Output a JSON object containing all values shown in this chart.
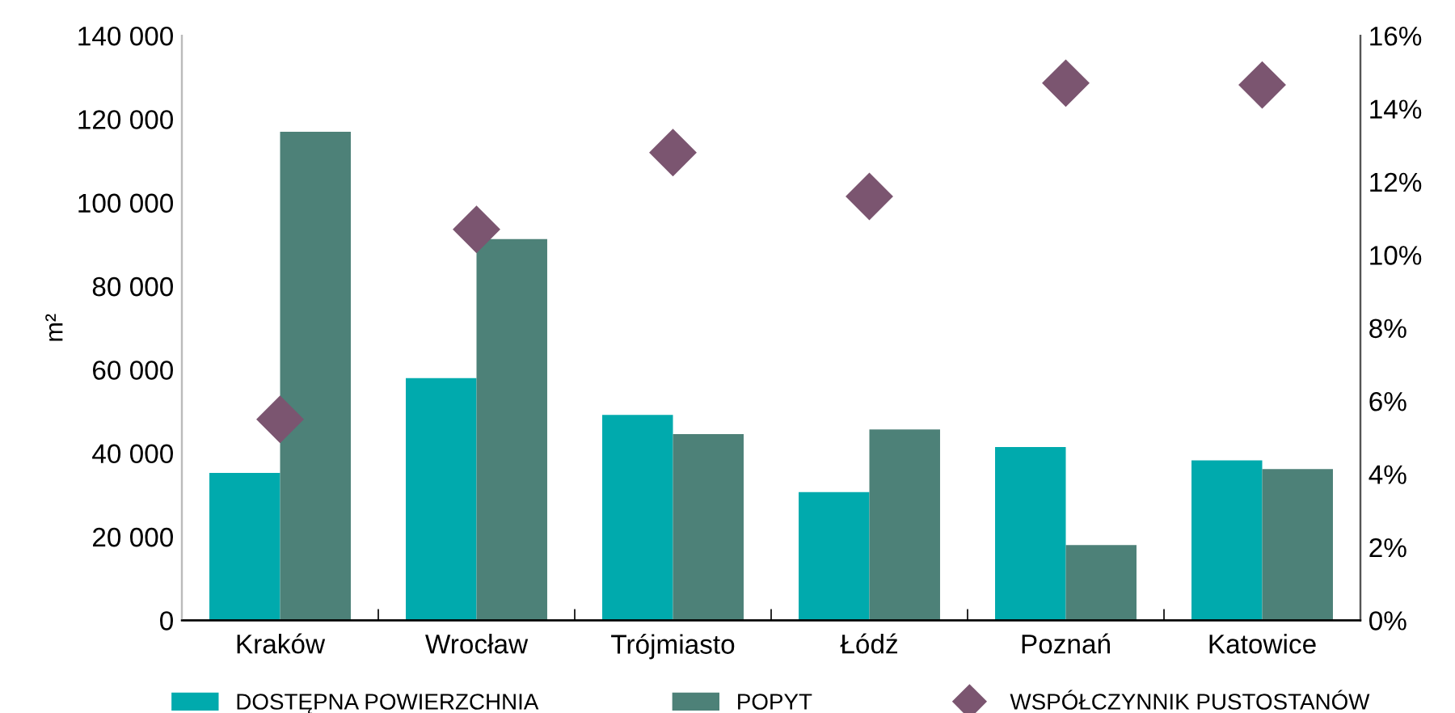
{
  "chart_data": {
    "type": "bar",
    "ylabel": "m²",
    "categories": [
      "Kraków",
      "Wrocław",
      "Trójmiasto",
      "Łódź",
      "Poznań",
      "Katowice"
    ],
    "series": [
      {
        "name": "DOSTĘPNA POWIERZCHNIA",
        "color": "#00aaad",
        "values": [
          35300,
          58000,
          49200,
          30700,
          41500,
          38300
        ]
      },
      {
        "name": "POPYT",
        "color": "#4d8178",
        "values": [
          117000,
          91300,
          44600,
          45700,
          18000,
          36200
        ]
      },
      {
        "name": "WSPÓŁCZYNNIK PUSTOSTANÓW",
        "type": "scatter",
        "axis": "y2",
        "color": "#7b5570",
        "values": [
          5.5,
          10.7,
          12.8,
          11.6,
          14.7,
          14.65
        ]
      }
    ],
    "ylim": [
      0,
      140000
    ],
    "yticks": [
      {
        "value": 0,
        "label": "0"
      },
      {
        "value": 20000,
        "label": "20 000"
      },
      {
        "value": 40000,
        "label": "40 000"
      },
      {
        "value": 60000,
        "label": "60 000"
      },
      {
        "value": 80000,
        "label": "80 000"
      },
      {
        "value": 100000,
        "label": "100 000"
      },
      {
        "value": 120000,
        "label": "120 000"
      },
      {
        "value": 140000,
        "label": "140 000"
      }
    ],
    "y2lim": [
      0,
      16
    ],
    "y2ticks": [
      {
        "value": 0,
        "label": "0%"
      },
      {
        "value": 2,
        "label": "2%"
      },
      {
        "value": 4,
        "label": "4%"
      },
      {
        "value": 6,
        "label": "6%"
      },
      {
        "value": 8,
        "label": "8%"
      },
      {
        "value": 10,
        "label": "10%"
      },
      {
        "value": 12,
        "label": "12%"
      },
      {
        "value": 14,
        "label": "14%"
      },
      {
        "value": 16,
        "label": "16%"
      }
    ],
    "marker": "diamond",
    "legend": "bottom",
    "grid": false
  }
}
